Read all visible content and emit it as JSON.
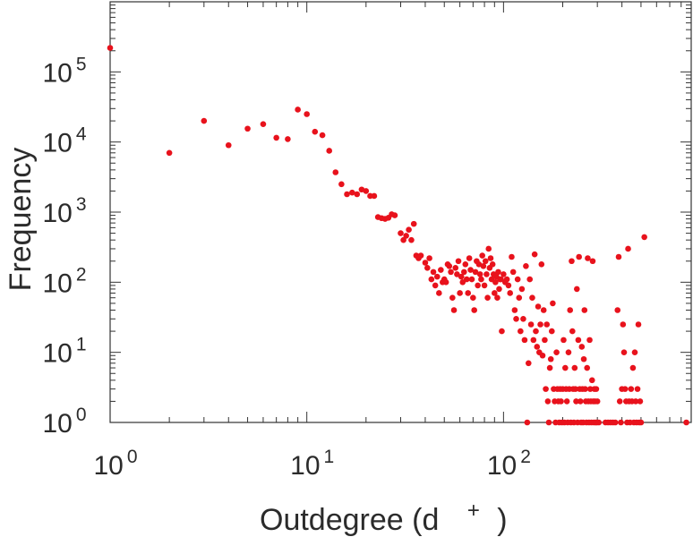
{
  "chart_data": {
    "type": "scatter",
    "xlabel": "Outdegree (d",
    "xlabel_superscript": "+",
    "xlabel_close": ")",
    "ylabel": "Frequency",
    "x_scale": "log",
    "y_scale": "log",
    "xlim": [
      1,
      900
    ],
    "ylim": [
      1,
      1000000
    ],
    "x_ticks": [
      {
        "base": "10",
        "exp": "0",
        "value": 1
      },
      {
        "base": "10",
        "exp": "1",
        "value": 10
      },
      {
        "base": "10",
        "exp": "2",
        "value": 100
      }
    ],
    "y_ticks": [
      {
        "base": "10",
        "exp": "0",
        "value": 1
      },
      {
        "base": "10",
        "exp": "1",
        "value": 10
      },
      {
        "base": "10",
        "exp": "2",
        "value": 100
      },
      {
        "base": "10",
        "exp": "3",
        "value": 1000
      },
      {
        "base": "10",
        "exp": "4",
        "value": 10000
      },
      {
        "base": "10",
        "exp": "5",
        "value": 100000
      }
    ],
    "grid": false,
    "marker_color": "#e8121c",
    "axis_color": "#333333",
    "series": [
      {
        "points": [
          [
            1,
            220000
          ],
          [
            2,
            7000
          ],
          [
            3,
            20000
          ],
          [
            4,
            9000
          ],
          [
            5,
            15500
          ],
          [
            6,
            18000
          ],
          [
            7,
            11500
          ],
          [
            8,
            11000
          ],
          [
            9,
            29000
          ],
          [
            10,
            25000
          ],
          [
            11,
            14000
          ],
          [
            12,
            12500
          ],
          [
            13,
            7500
          ],
          [
            14,
            3700
          ],
          [
            15,
            2500
          ],
          [
            16,
            1800
          ],
          [
            17,
            1900
          ],
          [
            18,
            1800
          ],
          [
            19,
            2100
          ],
          [
            20,
            2000
          ],
          [
            21,
            1700
          ],
          [
            22,
            1700
          ],
          [
            23,
            850
          ],
          [
            24,
            820
          ],
          [
            25,
            800
          ],
          [
            26,
            830
          ],
          [
            27,
            930
          ],
          [
            28,
            900
          ],
          [
            30,
            500
          ],
          [
            31,
            400
          ],
          [
            32,
            460
          ],
          [
            33,
            560
          ],
          [
            34,
            400
          ],
          [
            35,
            680
          ],
          [
            36,
            240
          ],
          [
            37,
            220
          ],
          [
            38,
            240
          ],
          [
            40,
            190
          ],
          [
            41,
            160
          ],
          [
            42,
            220
          ],
          [
            43,
            110
          ],
          [
            44,
            140
          ],
          [
            45,
            90
          ],
          [
            46,
            120
          ],
          [
            47,
            70
          ],
          [
            48,
            150
          ],
          [
            49,
            100
          ],
          [
            50,
            110
          ],
          [
            51,
            100
          ],
          [
            52,
            180
          ],
          [
            53,
            170
          ],
          [
            54,
            140
          ],
          [
            55,
            60
          ],
          [
            56,
            40
          ],
          [
            57,
            160
          ],
          [
            58,
            130
          ],
          [
            59,
            200
          ],
          [
            60,
            70
          ],
          [
            61,
            120
          ],
          [
            62,
            100
          ],
          [
            63,
            140
          ],
          [
            64,
            180
          ],
          [
            65,
            110
          ],
          [
            66,
            70
          ],
          [
            67,
            220
          ],
          [
            68,
            150
          ],
          [
            69,
            110
          ],
          [
            70,
            60
          ],
          [
            71,
            40
          ],
          [
            72,
            140
          ],
          [
            73,
            200
          ],
          [
            74,
            90
          ],
          [
            75,
            180
          ],
          [
            76,
            130
          ],
          [
            77,
            110
          ],
          [
            78,
            240
          ],
          [
            79,
            170
          ],
          [
            80,
            90
          ],
          [
            81,
            200
          ],
          [
            82,
            130
          ],
          [
            83,
            60
          ],
          [
            84,
            300
          ],
          [
            85,
            160
          ],
          [
            86,
            220
          ],
          [
            87,
            110
          ],
          [
            88,
            180
          ],
          [
            89,
            130
          ],
          [
            90,
            70
          ],
          [
            91,
            100
          ],
          [
            92,
            120
          ],
          [
            93,
            60
          ],
          [
            94,
            140
          ],
          [
            95,
            80
          ],
          [
            96,
            110
          ],
          [
            97,
            110
          ],
          [
            98,
            20
          ],
          [
            100,
            130
          ],
          [
            102,
            100
          ],
          [
            104,
            110
          ],
          [
            106,
            90
          ],
          [
            108,
            70
          ],
          [
            110,
            230
          ],
          [
            112,
            140
          ],
          [
            114,
            40
          ],
          [
            116,
            30
          ],
          [
            118,
            110
          ],
          [
            120,
            60
          ],
          [
            122,
            20
          ],
          [
            124,
            80
          ],
          [
            126,
            30
          ],
          [
            128,
            15
          ],
          [
            130,
            170
          ],
          [
            132,
            1
          ],
          [
            134,
            7
          ],
          [
            136,
            110
          ],
          [
            138,
            25
          ],
          [
            140,
            60
          ],
          [
            142,
            15
          ],
          [
            144,
            250
          ],
          [
            146,
            20
          ],
          [
            148,
            12
          ],
          [
            150,
            45
          ],
          [
            152,
            10
          ],
          [
            154,
            25
          ],
          [
            156,
            180
          ],
          [
            158,
            9
          ],
          [
            160,
            40
          ],
          [
            162,
            15
          ],
          [
            164,
            3
          ],
          [
            166,
            25
          ],
          [
            168,
            2
          ],
          [
            170,
            1
          ],
          [
            172,
            6
          ],
          [
            174,
            8
          ],
          [
            176,
            20
          ],
          [
            178,
            50
          ],
          [
            180,
            3
          ],
          [
            182,
            2
          ],
          [
            184,
            1
          ],
          [
            186,
            10
          ],
          [
            188,
            3
          ],
          [
            190,
            2
          ],
          [
            192,
            1
          ],
          [
            194,
            3
          ],
          [
            196,
            2
          ],
          [
            198,
            1
          ],
          [
            200,
            3
          ],
          [
            202,
            15
          ],
          [
            204,
            1
          ],
          [
            206,
            6
          ],
          [
            208,
            3
          ],
          [
            210,
            2
          ],
          [
            212,
            1
          ],
          [
            214,
            10
          ],
          [
            216,
            3
          ],
          [
            218,
            40
          ],
          [
            220,
            1
          ],
          [
            222,
            200
          ],
          [
            224,
            20
          ],
          [
            226,
            3
          ],
          [
            228,
            1
          ],
          [
            230,
            6
          ],
          [
            232,
            3
          ],
          [
            234,
            2
          ],
          [
            236,
            80
          ],
          [
            238,
            1
          ],
          [
            240,
            15
          ],
          [
            242,
            230
          ],
          [
            244,
            3
          ],
          [
            246,
            2
          ],
          [
            248,
            1
          ],
          [
            250,
            12
          ],
          [
            252,
            3
          ],
          [
            254,
            1
          ],
          [
            256,
            8
          ],
          [
            258,
            40
          ],
          [
            260,
            3
          ],
          [
            262,
            2
          ],
          [
            264,
            1
          ],
          [
            266,
            6
          ],
          [
            268,
            220
          ],
          [
            270,
            2
          ],
          [
            272,
            1
          ],
          [
            274,
            15
          ],
          [
            276,
            3
          ],
          [
            278,
            2
          ],
          [
            280,
            1
          ],
          [
            282,
            4
          ],
          [
            284,
            200
          ],
          [
            286,
            2
          ],
          [
            288,
            1
          ],
          [
            290,
            3
          ],
          [
            292,
            2
          ],
          [
            294,
            1
          ],
          [
            296,
            3
          ],
          [
            298,
            1
          ],
          [
            300,
            2
          ],
          [
            305,
            1
          ],
          [
            330,
            1
          ],
          [
            340,
            1
          ],
          [
            350,
            1
          ],
          [
            360,
            1
          ],
          [
            370,
            1
          ],
          [
            380,
            40
          ],
          [
            385,
            230
          ],
          [
            390,
            2
          ],
          [
            395,
            1
          ],
          [
            400,
            3
          ],
          [
            405,
            25
          ],
          [
            410,
            10
          ],
          [
            415,
            3
          ],
          [
            420,
            2
          ],
          [
            425,
            1
          ],
          [
            430,
            300
          ],
          [
            435,
            2
          ],
          [
            440,
            1
          ],
          [
            445,
            3
          ],
          [
            450,
            2
          ],
          [
            455,
            6
          ],
          [
            460,
            1
          ],
          [
            465,
            10
          ],
          [
            470,
            2
          ],
          [
            475,
            1
          ],
          [
            480,
            3
          ],
          [
            485,
            25
          ],
          [
            490,
            1
          ],
          [
            495,
            2
          ],
          [
            500,
            1
          ],
          [
            520,
            440
          ],
          [
            850,
            1
          ]
        ]
      }
    ]
  }
}
